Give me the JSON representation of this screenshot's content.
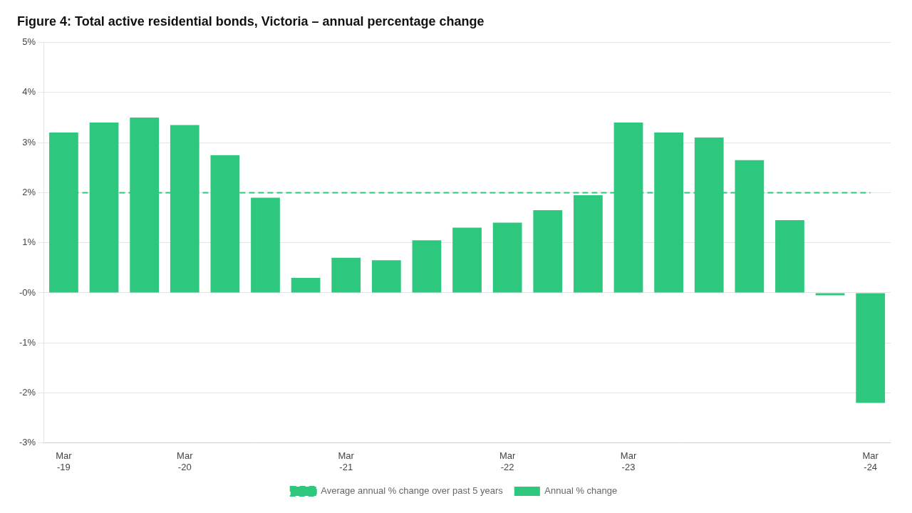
{
  "chart_data": {
    "type": "bar",
    "title": "Figure 4: Total active residential bonds, Victoria – annual percentage change",
    "categories": [
      "Mar\n-19",
      null,
      null,
      "Mar\n-20",
      null,
      null,
      null,
      "Mar\n-21",
      null,
      null,
      null,
      "Mar\n-22",
      null,
      null,
      "Mar\n-23",
      null,
      null,
      null,
      null,
      null,
      "Mar\n-24"
    ],
    "series": [
      {
        "name": "Annual % change",
        "type": "bar",
        "color": "#2DC87E",
        "values": [
          3.2,
          3.4,
          3.5,
          3.35,
          2.75,
          1.9,
          0.3,
          0.7,
          0.65,
          1.05,
          1.3,
          1.4,
          1.65,
          1.95,
          3.4,
          3.2,
          3.1,
          2.65,
          1.45,
          -0.05,
          -2.2
        ]
      },
      {
        "name": "Average annual % change over past 5 years",
        "type": "line",
        "line_style": "dashed",
        "color": "#2DC87E",
        "values": [
          2.0,
          2.0,
          2.0,
          2.0,
          2.0,
          2.0,
          2.0,
          2.0,
          2.0,
          2.0,
          2.0,
          2.0,
          2.0,
          2.0,
          2.0,
          2.0,
          2.0,
          2.0,
          2.0,
          2.0,
          2.0
        ]
      }
    ],
    "ylim": [
      -3.0,
      5.0
    ],
    "yticks": [
      {
        "value": -3,
        "label": "-3%"
      },
      {
        "value": -2,
        "label": "-2%"
      },
      {
        "value": -1,
        "label": "-1%"
      },
      {
        "value": 0,
        "label": "-0%"
      },
      {
        "value": 1,
        "label": "1%"
      },
      {
        "value": 2,
        "label": "2%"
      },
      {
        "value": 3,
        "label": "3%"
      },
      {
        "value": 4,
        "label": "4%"
      },
      {
        "value": 5,
        "label": "5%"
      }
    ],
    "grid": true,
    "legend": "bottom"
  }
}
